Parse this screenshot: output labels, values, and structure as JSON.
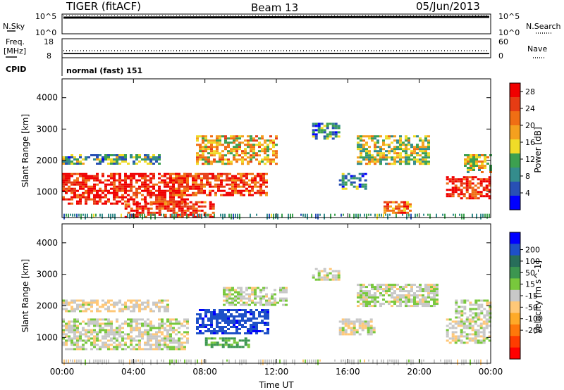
{
  "header": {
    "station": "TIGER (fitACF)",
    "beam": "Beam 13",
    "date": "05/Jun/2013"
  },
  "top_panels": {
    "nsky": {
      "label": "N.Sky",
      "ticks": [
        "10^5",
        "10^0"
      ],
      "right_label": "N.Search",
      "right_ticks": [
        "10^5",
        "10^0"
      ]
    },
    "freq": {
      "label_line1": "Freq.",
      "label_line2": "[MHz]",
      "ticks": [
        "18",
        "8"
      ],
      "right_label": "Nave",
      "right_ticks": [
        "60",
        "0"
      ]
    },
    "cpid": {
      "label": "CPID",
      "value": "normal (fast) 151"
    }
  },
  "colors": {
    "power": [
      "#0000ff",
      "#2850b4",
      "#348c8c",
      "#3ca050",
      "#f0dc28",
      "#f5a01e",
      "#f06e14",
      "#e63c14",
      "#f00000"
    ],
    "velocity": [
      "#0000ff",
      "#1e50c8",
      "#286e5a",
      "#3c9650",
      "#78c83c",
      "#c8c8c8",
      "#ffc878",
      "#ffaa28",
      "#ff780a",
      "#ff3c00",
      "#ff0000"
    ]
  },
  "chart_data": [
    {
      "type": "heatmap",
      "title": "",
      "xlabel": "",
      "ylabel": "Slant Range [km]",
      "x_ticks": [
        "00:00",
        "04:00",
        "08:00",
        "12:00",
        "16:00",
        "20:00",
        "00:00"
      ],
      "xlim_hours": [
        0,
        24
      ],
      "ylim_km": [
        180,
        4600
      ],
      "y_ticks": [
        1000,
        2000,
        3000,
        4000
      ],
      "colorbar": {
        "label": "Power [dB]",
        "ticks": [
          4,
          8,
          12,
          16,
          20,
          24,
          28
        ],
        "range": [
          0,
          30
        ]
      },
      "features": [
        {
          "t0": 0.0,
          "t1": 7.0,
          "r0": 600,
          "r1": 1600,
          "dB": 27
        },
        {
          "t0": 0.0,
          "t1": 5.5,
          "r0": 1900,
          "r1": 2200,
          "dB": 10
        },
        {
          "t0": 3.5,
          "t1": 8.5,
          "r0": 200,
          "r1": 700,
          "dB": 26
        },
        {
          "t0": 6.0,
          "t1": 11.5,
          "r0": 900,
          "r1": 1600,
          "dB": 25
        },
        {
          "t0": 7.5,
          "t1": 12.0,
          "r0": 1900,
          "r1": 2800,
          "dB": 18
        },
        {
          "t0": 14.0,
          "t1": 15.5,
          "r0": 2700,
          "r1": 3200,
          "dB": 8
        },
        {
          "t0": 15.5,
          "t1": 17.0,
          "r0": 1100,
          "r1": 1600,
          "dB": 8
        },
        {
          "t0": 16.5,
          "t1": 20.5,
          "r0": 1900,
          "r1": 2800,
          "dB": 14
        },
        {
          "t0": 18.0,
          "t1": 19.5,
          "r0": 300,
          "r1": 700,
          "dB": 22
        },
        {
          "t0": 21.5,
          "t1": 24.0,
          "r0": 800,
          "r1": 1500,
          "dB": 27
        },
        {
          "t0": 22.5,
          "t1": 24.0,
          "r0": 1600,
          "r1": 2200,
          "dB": 16
        }
      ]
    },
    {
      "type": "heatmap",
      "title": "",
      "xlabel": "Time UT",
      "ylabel": "Slant Range [km]",
      "x_ticks": [
        "00:00",
        "04:00",
        "08:00",
        "12:00",
        "16:00",
        "20:00",
        "00:00"
      ],
      "xlim_hours": [
        0,
        24
      ],
      "ylim_km": [
        180,
        4600
      ],
      "y_ticks": [
        1000,
        2000,
        3000,
        4000
      ],
      "colorbar": {
        "label": "Velocity [m s^-1]",
        "ticks": [
          200,
          100,
          50,
          15,
          -15,
          -50,
          -100,
          -200
        ]
      },
      "features": [
        {
          "t0": 0.0,
          "t1": 7.0,
          "r0": 600,
          "r1": 1600,
          "vel": 0
        },
        {
          "t0": 0.0,
          "t1": 6.0,
          "r0": 1800,
          "r1": 2200,
          "vel": -10
        },
        {
          "t0": 7.5,
          "t1": 11.5,
          "r0": 1100,
          "r1": 1900,
          "vel": 230
        },
        {
          "t0": 8.0,
          "t1": 10.5,
          "r0": 700,
          "r1": 1000,
          "vel": 60
        },
        {
          "t0": 9.0,
          "t1": 12.5,
          "r0": 2000,
          "r1": 2600,
          "vel": 5
        },
        {
          "t0": 14.0,
          "t1": 15.5,
          "r0": 2800,
          "r1": 3200,
          "vel": 5
        },
        {
          "t0": 15.5,
          "t1": 17.5,
          "r0": 1100,
          "r1": 1600,
          "vel": -5
        },
        {
          "t0": 16.5,
          "t1": 21.0,
          "r0": 2000,
          "r1": 2700,
          "vel": 5
        },
        {
          "t0": 21.5,
          "t1": 24.0,
          "r0": 800,
          "r1": 1600,
          "vel": 0
        },
        {
          "t0": 22.0,
          "t1": 24.0,
          "r0": 1600,
          "r1": 2200,
          "vel": 10
        }
      ]
    }
  ]
}
